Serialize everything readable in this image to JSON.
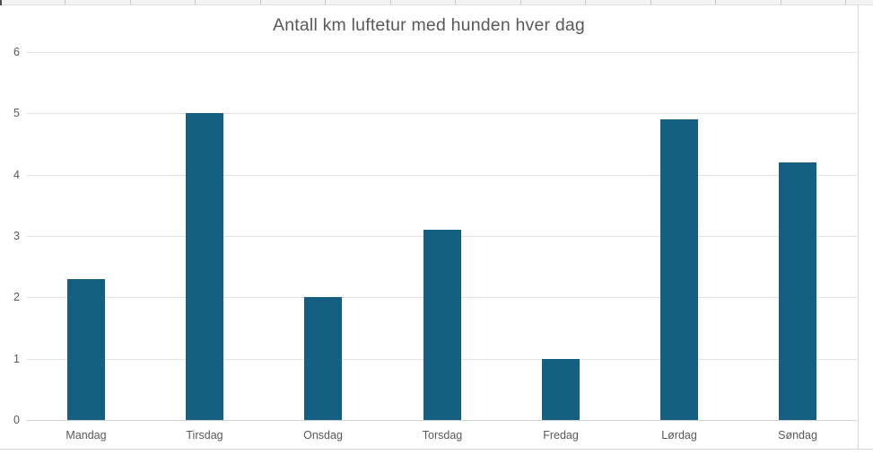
{
  "chart_data": {
    "type": "bar",
    "title": "Antall km luftetur med hunden hver dag",
    "categories": [
      "Mandag",
      "Tirsdag",
      "Onsdag",
      "Torsdag",
      "Fredag",
      "Lørdag",
      "Søndag"
    ],
    "values": [
      2.3,
      5,
      2,
      3.1,
      1,
      4.9,
      4.2
    ],
    "xlabel": "",
    "ylabel": "",
    "ylim": [
      0,
      6
    ],
    "yticks": [
      0,
      1,
      2,
      3,
      4,
      5,
      6
    ],
    "grid": "horizontal",
    "legend": "none",
    "colors": {
      "bar": "#156082",
      "text": "#595959",
      "gridline": "#e2e2e2",
      "axis_line": "#d2d2d2",
      "frame_border": "#d9d9d9"
    }
  }
}
